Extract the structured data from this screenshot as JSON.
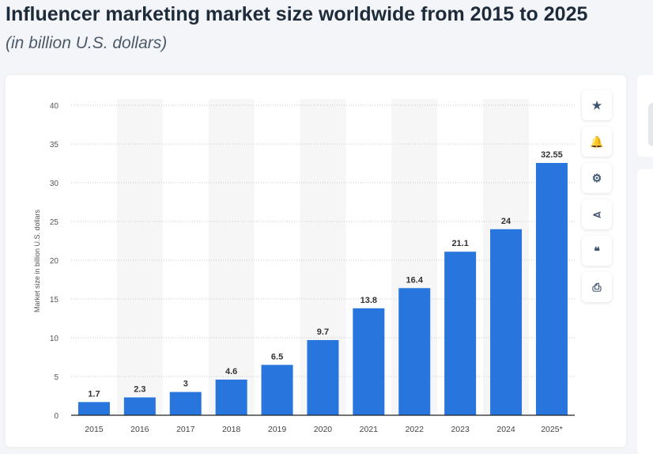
{
  "title": "Influencer marketing market size worldwide from 2015 to 2025",
  "subtitle": "(in billion U.S. dollars)",
  "toolbar": [
    {
      "icon": "star-icon",
      "glyph": "★"
    },
    {
      "icon": "bell-icon",
      "glyph": "🔔"
    },
    {
      "icon": "gear-icon",
      "glyph": "⚙"
    },
    {
      "icon": "share-icon",
      "glyph": "⋖"
    },
    {
      "icon": "quote-icon",
      "glyph": "❝"
    },
    {
      "icon": "print-icon",
      "glyph": "⎙"
    }
  ],
  "chart_data": {
    "type": "bar",
    "categories": [
      "2015",
      "2016",
      "2017",
      "2018",
      "2019",
      "2020",
      "2021",
      "2022",
      "2023",
      "2024",
      "2025*"
    ],
    "values": [
      1.7,
      2.3,
      3,
      4.6,
      6.5,
      9.7,
      13.8,
      16.4,
      21.1,
      24,
      32.55
    ],
    "labels": [
      "1.7",
      "2.3",
      "3",
      "4.6",
      "6.5",
      "9.7",
      "13.8",
      "16.4",
      "21.1",
      "24",
      "32.55"
    ],
    "ylabel": "Market size in billion U.S. dollars",
    "ylim": [
      0,
      40
    ],
    "yticks": [
      0,
      5,
      10,
      15,
      20,
      25,
      30,
      35,
      40
    ],
    "grid": true,
    "bar_color": "#2876dd"
  }
}
